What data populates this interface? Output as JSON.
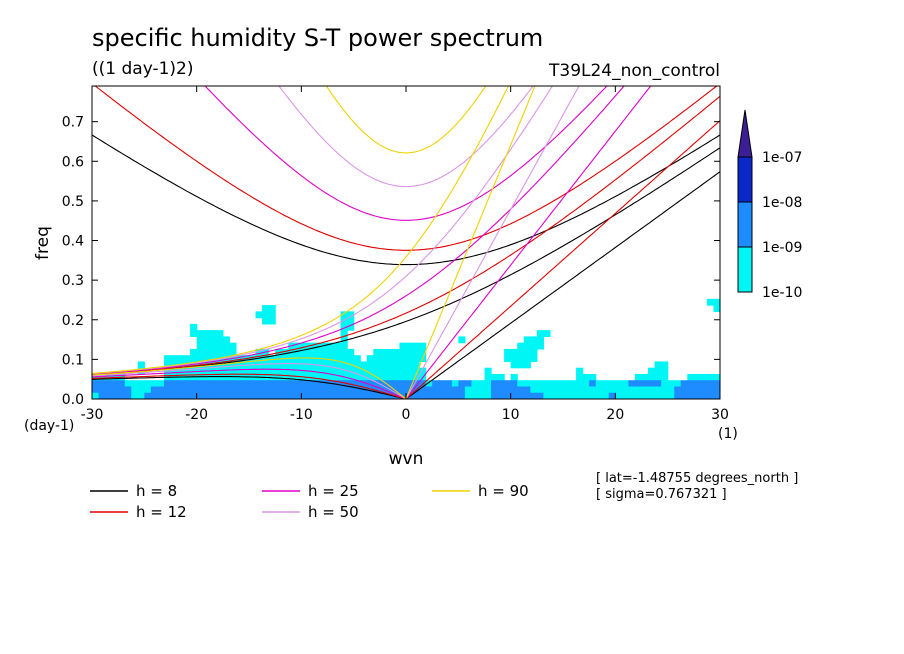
{
  "chart_data": {
    "type": "heatmap",
    "title": "specific humidity S-T power spectrum",
    "subtitle": "((1 day-1)2)",
    "run_label": "T39L24_non_control",
    "xlabel": "wvn",
    "ylabel": "freq",
    "x_unit_label": "(1)",
    "y_unit_label": "(day-1)",
    "xlim": [
      -30,
      30
    ],
    "ylim": [
      0,
      0.79
    ],
    "xticks": [
      -30,
      -20,
      -10,
      0,
      10,
      20,
      30
    ],
    "yticks": [
      0.0,
      0.1,
      0.2,
      0.3,
      0.4,
      0.5,
      0.6,
      0.7
    ],
    "xtick_labels": [
      "-30",
      "-20",
      "-10",
      "0",
      "10",
      "20",
      "30"
    ],
    "ytick_labels": [
      "0.0",
      "0.1",
      "0.2",
      "0.3",
      "0.4",
      "0.5",
      "0.6",
      "0.7"
    ],
    "colorbar": {
      "levels": [
        1e-10,
        1e-09,
        1e-08,
        1e-07
      ],
      "labels": [
        "1e-10",
        "1e-09",
        "1e-08",
        "1e-07"
      ],
      "colors": [
        "#00f5f5",
        "#1e8cff",
        "#0a28c8",
        "#3c1e96"
      ]
    },
    "contour_level_colors": {
      "below": "#ffffff",
      "l1": "#00f5f5",
      "l2": "#1e8cff",
      "l3": "#0a28c8",
      "l4": "#3c1e96"
    },
    "dispersion_curves": [
      {
        "name": "h =  8",
        "h": 8,
        "color": "#000000"
      },
      {
        "name": "h = 12",
        "h": 12,
        "color": "#e00000"
      },
      {
        "name": "h = 25",
        "h": 25,
        "color": "#e000c8"
      },
      {
        "name": "h = 50",
        "h": 50,
        "color": "#dc96e6"
      },
      {
        "name": "h = 90",
        "h": 90,
        "color": "#f0d200"
      }
    ],
    "annotations": [
      "[ lat=-1.48755 degrees_north ]",
      "[ sigma=0.767321 ]"
    ]
  }
}
